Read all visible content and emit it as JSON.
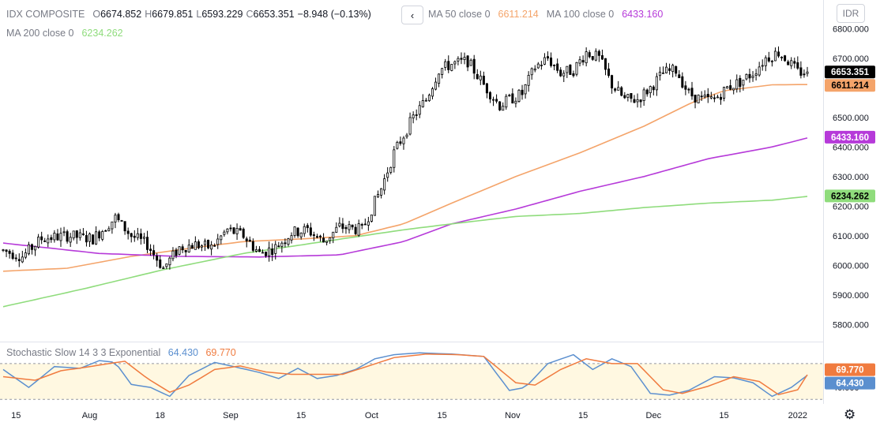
{
  "header": {
    "symbol": "IDX COMPOSITE",
    "ohlc": {
      "o_label": "O",
      "o": "6674.852",
      "h_label": "H",
      "h": "6679.851",
      "l_label": "L",
      "l": "6593.229",
      "c_label": "C",
      "c": "6653.351",
      "change": "−8.948 (−0.13%)"
    },
    "nav_icon": "chevron-left-icon",
    "ma50": {
      "label": "MA 50 close 0",
      "value": "6611.214",
      "color": "#f4a46a"
    },
    "ma100": {
      "label": "MA 100 close 0",
      "value": "6433.160",
      "color": "#b63ad9"
    },
    "ma200": {
      "label": "MA 200 close 0",
      "value": "6234.262",
      "color": "#8fdc7c"
    },
    "currency": "IDR"
  },
  "stochastic": {
    "label": "Stochastic Slow 14 3 3 Exponential",
    "k_value": "64.430",
    "k_color": "#5b8fcf",
    "d_value": "69.770",
    "d_color": "#f07b3f",
    "axis_label": "40.000"
  },
  "chart_data": [
    {
      "type": "candlestick",
      "title": "IDX COMPOSITE",
      "ylim": [
        5750,
        6870
      ],
      "y_ticks": [
        6800,
        6700,
        6600,
        6500,
        6400,
        6300,
        6200,
        6100,
        6000,
        5900,
        5800
      ],
      "y_tick_labels": [
        "6800.000",
        "6700.000",
        "6600.000",
        "6500.000",
        "6400.000",
        "6300.000",
        "6200.000",
        "6100.000",
        "6000.000",
        "5900.000",
        "5800.000"
      ],
      "x_tick_labels": [
        "15",
        "Aug",
        "18",
        "Sep",
        "15",
        "Oct",
        "15",
        "Nov",
        "15",
        "Dec",
        "15",
        "2022"
      ],
      "x_tick_index": [
        4,
        27,
        49,
        71,
        93,
        115,
        137,
        159,
        181,
        203,
        225,
        248
      ],
      "n_candles": 252,
      "series": [
        {
          "name": "MA 50 close 0",
          "color": "#f4a46a",
          "anchors": [
            [
              0,
              5980
            ],
            [
              20,
              5990
            ],
            [
              40,
              6030
            ],
            [
              60,
              6060
            ],
            [
              75,
              6080
            ],
            [
              95,
              6090
            ],
            [
              110,
              6100
            ],
            [
              125,
              6140
            ],
            [
              140,
              6210
            ],
            [
              160,
              6300
            ],
            [
              180,
              6380
            ],
            [
              200,
              6470
            ],
            [
              215,
              6550
            ],
            [
              225,
              6590
            ],
            [
              240,
              6610
            ],
            [
              252,
              6611
            ]
          ]
        },
        {
          "name": "MA 100 close 0",
          "color": "#b63ad9",
          "anchors": [
            [
              0,
              6075
            ],
            [
              30,
              6040
            ],
            [
              55,
              6030
            ],
            [
              80,
              6028
            ],
            [
              105,
              6035
            ],
            [
              125,
              6080
            ],
            [
              140,
              6140
            ],
            [
              160,
              6190
            ],
            [
              180,
              6250
            ],
            [
              200,
              6300
            ],
            [
              220,
              6360
            ],
            [
              240,
              6400
            ],
            [
              252,
              6433
            ]
          ]
        },
        {
          "name": "MA 200 close 0",
          "color": "#8fdc7c",
          "anchors": [
            [
              0,
              5860
            ],
            [
              25,
              5920
            ],
            [
              50,
              5985
            ],
            [
              75,
              6040
            ],
            [
              100,
              6080
            ],
            [
              125,
              6120
            ],
            [
              140,
              6140
            ],
            [
              160,
              6165
            ],
            [
              180,
              6175
            ],
            [
              200,
              6195
            ],
            [
              220,
              6210
            ],
            [
              240,
              6220
            ],
            [
              252,
              6234
            ]
          ]
        }
      ],
      "price_anchors": [
        [
          0,
          6050
        ],
        [
          6,
          6030
        ],
        [
          12,
          6090
        ],
        [
          20,
          6100
        ],
        [
          28,
          6090
        ],
        [
          35,
          6160
        ],
        [
          40,
          6100
        ],
        [
          45,
          6070
        ],
        [
          50,
          5990
        ],
        [
          55,
          6060
        ],
        [
          60,
          6070
        ],
        [
          65,
          6060
        ],
        [
          70,
          6120
        ],
        [
          75,
          6100
        ],
        [
          80,
          6040
        ],
        [
          85,
          6060
        ],
        [
          90,
          6110
        ],
        [
          95,
          6120
        ],
        [
          100,
          6080
        ],
        [
          105,
          6130
        ],
        [
          112,
          6120
        ],
        [
          118,
          6260
        ],
        [
          122,
          6380
        ],
        [
          128,
          6500
        ],
        [
          132,
          6560
        ],
        [
          136,
          6660
        ],
        [
          140,
          6680
        ],
        [
          145,
          6690
        ],
        [
          150,
          6610
        ],
        [
          155,
          6540
        ],
        [
          158,
          6560
        ],
        [
          162,
          6580
        ],
        [
          166,
          6670
        ],
        [
          170,
          6700
        ],
        [
          174,
          6650
        ],
        [
          178,
          6660
        ],
        [
          182,
          6720
        ],
        [
          186,
          6700
        ],
        [
          190,
          6610
        ],
        [
          194,
          6560
        ],
        [
          198,
          6560
        ],
        [
          202,
          6600
        ],
        [
          206,
          6650
        ],
        [
          210,
          6660
        ],
        [
          214,
          6580
        ],
        [
          218,
          6560
        ],
        [
          222,
          6560
        ],
        [
          226,
          6600
        ],
        [
          230,
          6620
        ],
        [
          234,
          6650
        ],
        [
          238,
          6700
        ],
        [
          242,
          6720
        ],
        [
          245,
          6690
        ],
        [
          248,
          6653
        ]
      ],
      "last_close": 6653.351,
      "price_labels": [
        {
          "text": "6653.351",
          "value": 6653.351,
          "bg": "#000000",
          "fg": "#ffffff"
        },
        {
          "text": "6611.214",
          "value": 6611.214,
          "bg": "#f4a46a",
          "fg": "#000000"
        },
        {
          "text": "6433.160",
          "value": 6433.16,
          "bg": "#b63ad9",
          "fg": "#ffffff"
        },
        {
          "text": "6234.262",
          "value": 6234.262,
          "bg": "#8fdc7c",
          "fg": "#000000"
        }
      ]
    },
    {
      "type": "line",
      "title": "Stochastic Slow 14 3 3 Exponential",
      "ylim": [
        15,
        105
      ],
      "bands": [
        20,
        80
      ],
      "series": [
        {
          "name": "%K",
          "color": "#5b8fcf",
          "anchors": [
            [
              0,
              70
            ],
            [
              8,
              40
            ],
            [
              16,
              75
            ],
            [
              24,
              72
            ],
            [
              30,
              85
            ],
            [
              35,
              82
            ],
            [
              40,
              45
            ],
            [
              46,
              40
            ],
            [
              52,
              25
            ],
            [
              58,
              60
            ],
            [
              66,
              82
            ],
            [
              72,
              75
            ],
            [
              80,
              65
            ],
            [
              86,
              55
            ],
            [
              92,
              72
            ],
            [
              98,
              55
            ],
            [
              104,
              60
            ],
            [
              110,
              70
            ],
            [
              116,
              88
            ],
            [
              122,
              95
            ],
            [
              130,
              98
            ],
            [
              140,
              96
            ],
            [
              150,
              92
            ],
            [
              158,
              35
            ],
            [
              163,
              40
            ],
            [
              170,
              80
            ],
            [
              178,
              95
            ],
            [
              184,
              70
            ],
            [
              190,
              88
            ],
            [
              196,
              75
            ],
            [
              202,
              30
            ],
            [
              208,
              27
            ],
            [
              214,
              35
            ],
            [
              222,
              58
            ],
            [
              228,
              56
            ],
            [
              234,
              48
            ],
            [
              240,
              25
            ],
            [
              246,
              40
            ],
            [
              252,
              64.43
            ]
          ]
        },
        {
          "name": "%D",
          "color": "#f07b3f",
          "anchors": [
            [
              0,
              58
            ],
            [
              10,
              52
            ],
            [
              18,
              68
            ],
            [
              26,
              74
            ],
            [
              33,
              80
            ],
            [
              38,
              84
            ],
            [
              45,
              55
            ],
            [
              52,
              32
            ],
            [
              58,
              44
            ],
            [
              66,
              70
            ],
            [
              74,
              76
            ],
            [
              82,
              66
            ],
            [
              90,
              62
            ],
            [
              98,
              62
            ],
            [
              106,
              62
            ],
            [
              114,
              76
            ],
            [
              122,
              90
            ],
            [
              132,
              96
            ],
            [
              142,
              95
            ],
            [
              150,
              92
            ],
            [
              160,
              48
            ],
            [
              166,
              44
            ],
            [
              174,
              70
            ],
            [
              182,
              88
            ],
            [
              190,
              80
            ],
            [
              198,
              80
            ],
            [
              206,
              36
            ],
            [
              212,
              30
            ],
            [
              220,
              42
            ],
            [
              228,
              58
            ],
            [
              236,
              50
            ],
            [
              242,
              28
            ],
            [
              248,
              36
            ],
            [
              252,
              69.77
            ]
          ]
        }
      ],
      "price_labels": [
        {
          "text": "69.770",
          "value": 69.77,
          "bg": "#f07b3f",
          "fg": "#ffffff"
        },
        {
          "text": "64.430",
          "value": 64.43,
          "bg": "#5b8fcf",
          "fg": "#ffffff"
        }
      ]
    }
  ]
}
